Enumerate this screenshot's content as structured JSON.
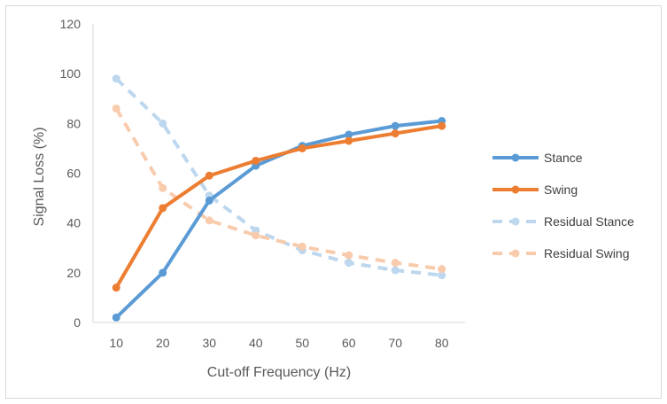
{
  "chart_data": {
    "type": "line",
    "title": "",
    "xlabel": "Cut-off Frequency (Hz)",
    "ylabel": "Signal Loss (%)",
    "categories": [
      "10",
      "20",
      "30",
      "40",
      "50",
      "60",
      "70",
      "80"
    ],
    "ylim": [
      0,
      120
    ],
    "yticks": [
      "0",
      "20",
      "40",
      "60",
      "80",
      "100",
      "120"
    ],
    "grid": false,
    "legend_position": "right",
    "series": [
      {
        "name": "Stance",
        "values": [
          2,
          20,
          49,
          63,
          71,
          75.5,
          79,
          81
        ],
        "color": "#5b9bd5",
        "style": "solid"
      },
      {
        "name": "Swing",
        "values": [
          14,
          46,
          59,
          65,
          70,
          73,
          76,
          79
        ],
        "color": "#ed7d31",
        "style": "solid"
      },
      {
        "name": "Residual Stance",
        "values": [
          98,
          80,
          51,
          37,
          29,
          24,
          21,
          19
        ],
        "color": "#bdd7ee",
        "style": "dashed"
      },
      {
        "name": "Residual Swing",
        "values": [
          86,
          54,
          41,
          35,
          30.5,
          27,
          24,
          21.5
        ],
        "color": "#f8cbad",
        "style": "dashed"
      }
    ]
  }
}
